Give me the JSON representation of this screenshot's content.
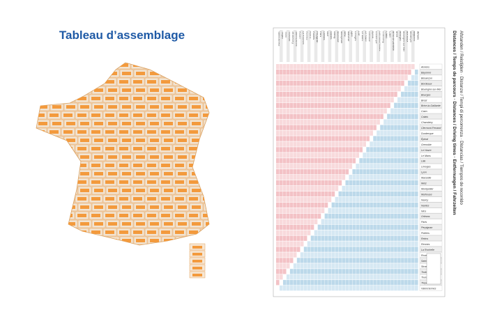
{
  "page": {
    "title": "Tableau d’assemblage"
  },
  "table": {
    "title_lines": [
      "Distances / Temps de parcours · Distances / Driving times · Entfernungen / Fahrzeiten",
      "Afstanden / Reistijden · Distanze / Tempi di percorrenza · Distancias / Tiempos de recorrido"
    ],
    "cities": [
      "Amiens",
      "Bayonne",
      "Besançon",
      "Bordeaux",
      "Boulogne-sur-Mer",
      "Bourges",
      "Brest",
      "Brive-la-Gaillarde",
      "Caen",
      "Calais",
      "Chambéry",
      "Clermont-Ferrand",
      "Dunkerque",
      "Épinal",
      "Grenoble",
      "Le Havre",
      "Le Mans",
      "Lille",
      "Limoges",
      "Lyon",
      "Marseille",
      "Metz",
      "Montpellier",
      "Mulhouse",
      "Nancy",
      "Nantes",
      "Nice",
      "Orléans",
      "Paris",
      "Perpignan",
      "Poitiers",
      "Reims",
      "Rennes",
      "La Rochelle",
      "Rouen",
      "Saint-Étienne",
      "Strasbourg",
      "Toulouse",
      "Tours",
      "Troyes",
      "Valenciennes"
    ]
  }
}
